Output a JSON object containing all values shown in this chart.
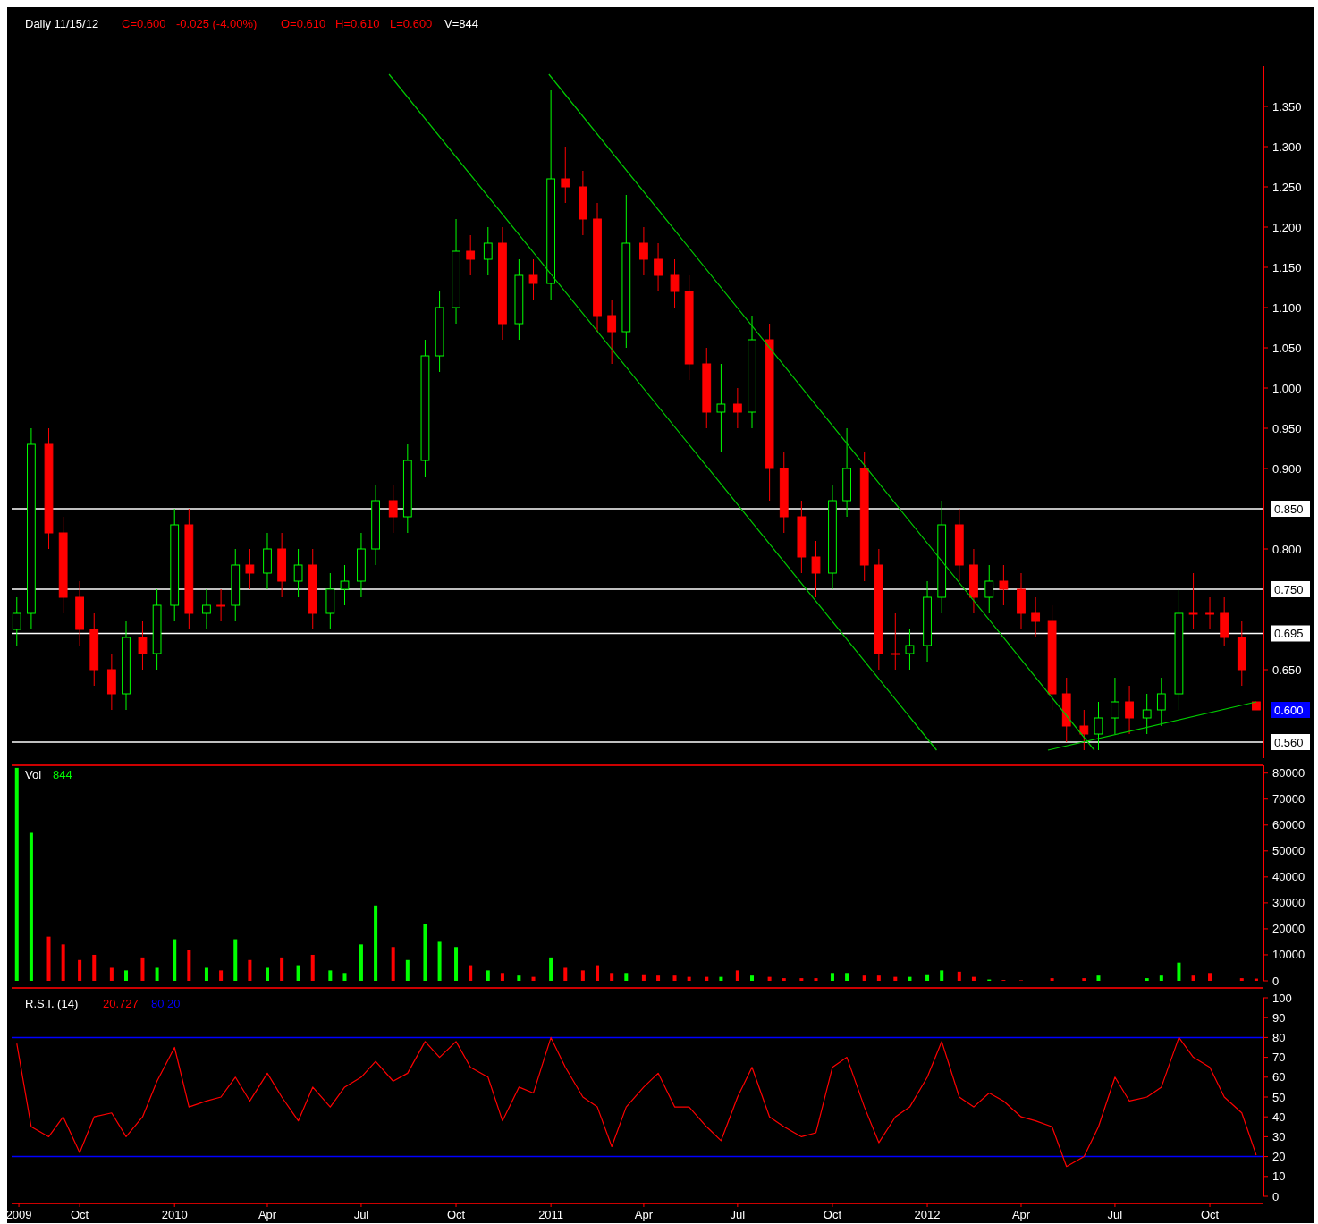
{
  "chart_data": [
    {
      "type": "candlestick",
      "title": "Daily 11/15/12",
      "annotations": [
        "C=0.600",
        "-0.025 (-4.00%)",
        "O=0.610",
        "H=0.610",
        "L=0.600",
        "V=844",
        {
          "text": "0.600",
          "x": "2012-11-15",
          "y": 0.6
        }
      ],
      "x": [
        "2009-08-01",
        "2009-08-15",
        "2009-09-01",
        "2009-09-15",
        "2009-10-01",
        "2009-10-15",
        "2009-11-01",
        "2009-11-15",
        "2009-12-01",
        "2009-12-15",
        "2010-01-01",
        "2010-01-15",
        "2010-02-01",
        "2010-02-15",
        "2010-03-01",
        "2010-03-15",
        "2010-04-01",
        "2010-04-15",
        "2010-05-01",
        "2010-05-15",
        "2010-06-01",
        "2010-06-15",
        "2010-07-01",
        "2010-07-15",
        "2010-08-01",
        "2010-08-15",
        "2010-09-01",
        "2010-09-15",
        "2010-10-01",
        "2010-10-15",
        "2010-11-01",
        "2010-11-15",
        "2010-12-01",
        "2010-12-15",
        "2011-01-01",
        "2011-01-15",
        "2011-02-01",
        "2011-02-15",
        "2011-03-01",
        "2011-03-15",
        "2011-04-01",
        "2011-04-15",
        "2011-05-01",
        "2011-05-15",
        "2011-06-01",
        "2011-06-15",
        "2011-07-01",
        "2011-07-15",
        "2011-08-01",
        "2011-08-15",
        "2011-09-01",
        "2011-09-15",
        "2011-10-01",
        "2011-10-15",
        "2011-11-01",
        "2011-11-15",
        "2011-12-01",
        "2011-12-15",
        "2012-01-01",
        "2012-01-15",
        "2012-02-01",
        "2012-02-15",
        "2012-03-01",
        "2012-03-15",
        "2012-04-01",
        "2012-04-15",
        "2012-05-01",
        "2012-05-15",
        "2012-06-01",
        "2012-06-15",
        "2012-07-01",
        "2012-07-15",
        "2012-08-01",
        "2012-08-15",
        "2012-09-01",
        "2012-09-15",
        "2012-10-01",
        "2012-10-15",
        "2012-11-01",
        "2012-11-15"
      ],
      "ohlc": [
        [
          0.7,
          0.74,
          0.68,
          0.72
        ],
        [
          0.72,
          0.95,
          0.7,
          0.93
        ],
        [
          0.93,
          0.95,
          0.8,
          0.82
        ],
        [
          0.82,
          0.84,
          0.72,
          0.74
        ],
        [
          0.74,
          0.76,
          0.68,
          0.7
        ],
        [
          0.7,
          0.72,
          0.63,
          0.65
        ],
        [
          0.65,
          0.67,
          0.6,
          0.62
        ],
        [
          0.62,
          0.71,
          0.6,
          0.69
        ],
        [
          0.69,
          0.71,
          0.65,
          0.67
        ],
        [
          0.67,
          0.75,
          0.65,
          0.73
        ],
        [
          0.73,
          0.85,
          0.71,
          0.83
        ],
        [
          0.83,
          0.85,
          0.7,
          0.72
        ],
        [
          0.72,
          0.75,
          0.7,
          0.73
        ],
        [
          0.73,
          0.75,
          0.71,
          0.73
        ],
        [
          0.73,
          0.8,
          0.71,
          0.78
        ],
        [
          0.78,
          0.8,
          0.75,
          0.77
        ],
        [
          0.77,
          0.82,
          0.75,
          0.8
        ],
        [
          0.8,
          0.82,
          0.74,
          0.76
        ],
        [
          0.76,
          0.8,
          0.74,
          0.78
        ],
        [
          0.78,
          0.8,
          0.7,
          0.72
        ],
        [
          0.72,
          0.77,
          0.7,
          0.75
        ],
        [
          0.75,
          0.78,
          0.73,
          0.76
        ],
        [
          0.76,
          0.82,
          0.74,
          0.8
        ],
        [
          0.8,
          0.88,
          0.78,
          0.86
        ],
        [
          0.86,
          0.88,
          0.82,
          0.84
        ],
        [
          0.84,
          0.93,
          0.82,
          0.91
        ],
        [
          0.91,
          1.06,
          0.89,
          1.04
        ],
        [
          1.04,
          1.12,
          1.02,
          1.1
        ],
        [
          1.1,
          1.21,
          1.08,
          1.17
        ],
        [
          1.17,
          1.19,
          1.14,
          1.16
        ],
        [
          1.16,
          1.2,
          1.14,
          1.18
        ],
        [
          1.18,
          1.2,
          1.06,
          1.08
        ],
        [
          1.08,
          1.16,
          1.06,
          1.14
        ],
        [
          1.14,
          1.16,
          1.11,
          1.13
        ],
        [
          1.13,
          1.37,
          1.11,
          1.26
        ],
        [
          1.26,
          1.3,
          1.23,
          1.25
        ],
        [
          1.25,
          1.27,
          1.19,
          1.21
        ],
        [
          1.21,
          1.23,
          1.07,
          1.09
        ],
        [
          1.09,
          1.11,
          1.03,
          1.07
        ],
        [
          1.07,
          1.24,
          1.05,
          1.18
        ],
        [
          1.18,
          1.2,
          1.14,
          1.16
        ],
        [
          1.16,
          1.18,
          1.12,
          1.14
        ],
        [
          1.14,
          1.16,
          1.1,
          1.12
        ],
        [
          1.12,
          1.14,
          1.01,
          1.03
        ],
        [
          1.03,
          1.05,
          0.95,
          0.97
        ],
        [
          0.97,
          1.03,
          0.92,
          0.98
        ],
        [
          0.98,
          1.0,
          0.95,
          0.97
        ],
        [
          0.97,
          1.09,
          0.95,
          1.06
        ],
        [
          1.06,
          1.08,
          0.86,
          0.9
        ],
        [
          0.9,
          0.92,
          0.82,
          0.84
        ],
        [
          0.84,
          0.86,
          0.77,
          0.79
        ],
        [
          0.79,
          0.81,
          0.74,
          0.77
        ],
        [
          0.77,
          0.88,
          0.75,
          0.86
        ],
        [
          0.86,
          0.95,
          0.84,
          0.9
        ],
        [
          0.9,
          0.92,
          0.76,
          0.78
        ],
        [
          0.78,
          0.8,
          0.65,
          0.67
        ],
        [
          0.67,
          0.72,
          0.65,
          0.67
        ],
        [
          0.67,
          0.7,
          0.65,
          0.68
        ],
        [
          0.68,
          0.76,
          0.66,
          0.74
        ],
        [
          0.74,
          0.86,
          0.72,
          0.83
        ],
        [
          0.83,
          0.85,
          0.76,
          0.78
        ],
        [
          0.78,
          0.8,
          0.72,
          0.74
        ],
        [
          0.74,
          0.78,
          0.72,
          0.76
        ],
        [
          0.76,
          0.78,
          0.73,
          0.75
        ],
        [
          0.75,
          0.77,
          0.7,
          0.72
        ],
        [
          0.72,
          0.74,
          0.69,
          0.71
        ],
        [
          0.71,
          0.73,
          0.6,
          0.62
        ],
        [
          0.62,
          0.64,
          0.56,
          0.58
        ],
        [
          0.58,
          0.6,
          0.55,
          0.57
        ],
        [
          0.57,
          0.61,
          0.55,
          0.59
        ],
        [
          0.59,
          0.64,
          0.57,
          0.61
        ],
        [
          0.61,
          0.63,
          0.57,
          0.59
        ],
        [
          0.59,
          0.62,
          0.57,
          0.6
        ],
        [
          0.6,
          0.64,
          0.58,
          0.62
        ],
        [
          0.62,
          0.75,
          0.6,
          0.72
        ],
        [
          0.72,
          0.77,
          0.7,
          0.72
        ],
        [
          0.72,
          0.74,
          0.7,
          0.72
        ],
        [
          0.72,
          0.74,
          0.68,
          0.69
        ],
        [
          0.69,
          0.71,
          0.63,
          0.65
        ],
        [
          0.61,
          0.61,
          0.6,
          0.6
        ]
      ],
      "series": [
        {
          "type": "line",
          "color": "#00cc00",
          "x": [
            "2010-07-28",
            "2012-01-10"
          ],
          "values": [
            1.39,
            0.55
          ]
        },
        {
          "type": "line",
          "color": "#00cc00",
          "x": [
            "2010-12-30",
            "2012-06-11"
          ],
          "values": [
            1.39,
            0.55
          ]
        },
        {
          "type": "line",
          "color": "#00cc00",
          "x": [
            "2012-04-27",
            "2012-11-15"
          ],
          "values": [
            0.55,
            0.61
          ]
        }
      ],
      "ref_lines": [
        {
          "axis": "y",
          "value": 0.85,
          "label": "0.850",
          "color": "#ffffff"
        },
        {
          "axis": "y",
          "value": 0.75,
          "label": "0.750",
          "color": "#ffffff"
        },
        {
          "axis": "y",
          "value": 0.695,
          "label": "0.695",
          "color": "#ffffff"
        },
        {
          "axis": "y",
          "value": 0.56,
          "label": "0.560",
          "color": "#ffffff"
        }
      ],
      "xlim": [
        "2009-07-27",
        "2012-11-22"
      ],
      "ylim": [
        0.54,
        1.4
      ],
      "yticks": [
        {
          "value": 0.65,
          "label": "0.650"
        },
        {
          "value": 0.8,
          "label": "0.800"
        },
        {
          "value": 0.9,
          "label": "0.900"
        },
        {
          "value": 0.95,
          "label": "0.950"
        },
        {
          "value": 1.0,
          "label": "1.000"
        },
        {
          "value": 1.05,
          "label": "1.050"
        },
        {
          "value": 1.1,
          "label": "1.100"
        },
        {
          "value": 1.15,
          "label": "1.150"
        },
        {
          "value": 1.2,
          "label": "1.200"
        },
        {
          "value": 1.25,
          "label": "1.250"
        },
        {
          "value": 1.3,
          "label": "1.300"
        },
        {
          "value": 1.35,
          "label": "1.350"
        }
      ],
      "tick_labels": "y"
    },
    {
      "type": "bar",
      "title": "Vol",
      "annotations": [
        "844"
      ],
      "x": [
        "2009-08-01",
        "2009-08-15",
        "2009-09-01",
        "2009-09-15",
        "2009-10-01",
        "2009-10-15",
        "2009-11-01",
        "2009-11-15",
        "2009-12-01",
        "2009-12-15",
        "2010-01-01",
        "2010-01-15",
        "2010-02-01",
        "2010-02-15",
        "2010-03-01",
        "2010-03-15",
        "2010-04-01",
        "2010-04-15",
        "2010-05-01",
        "2010-05-15",
        "2010-06-01",
        "2010-06-15",
        "2010-07-01",
        "2010-07-15",
        "2010-08-01",
        "2010-08-15",
        "2010-09-01",
        "2010-09-15",
        "2010-10-01",
        "2010-10-15",
        "2010-11-01",
        "2010-11-15",
        "2010-12-01",
        "2010-12-15",
        "2011-01-01",
        "2011-01-15",
        "2011-02-01",
        "2011-02-15",
        "2011-03-01",
        "2011-03-15",
        "2011-04-01",
        "2011-04-15",
        "2011-05-01",
        "2011-05-15",
        "2011-06-01",
        "2011-06-15",
        "2011-07-01",
        "2011-07-15",
        "2011-08-01",
        "2011-08-15",
        "2011-09-01",
        "2011-09-15",
        "2011-10-01",
        "2011-10-15",
        "2011-11-01",
        "2011-11-15",
        "2011-12-01",
        "2011-12-15",
        "2012-01-01",
        "2012-01-15",
        "2012-02-01",
        "2012-02-15",
        "2012-03-01",
        "2012-03-15",
        "2012-04-01",
        "2012-04-15",
        "2012-05-01",
        "2012-05-15",
        "2012-06-01",
        "2012-06-15",
        "2012-07-01",
        "2012-07-15",
        "2012-08-01",
        "2012-08-15",
        "2012-09-01",
        "2012-09-15",
        "2012-10-01",
        "2012-10-15",
        "2012-11-01",
        "2012-11-15"
      ],
      "values": [
        82000,
        57000,
        17000,
        14000,
        8000,
        10000,
        5000,
        4000,
        9000,
        5000,
        16000,
        12000,
        5000,
        4000,
        16000,
        8000,
        5000,
        9000,
        6000,
        10000,
        4000,
        3000,
        14000,
        29000,
        13000,
        8000,
        22000,
        15000,
        13000,
        6000,
        4000,
        3000,
        2000,
        1500,
        9000,
        5000,
        4000,
        6000,
        3000,
        3000,
        2500,
        2000,
        2000,
        1500,
        1500,
        1500,
        4000,
        2000,
        1500,
        1000,
        1000,
        1000,
        3000,
        3000,
        2000,
        2000,
        1500,
        1500,
        2500,
        4000,
        3500,
        1500,
        500,
        300,
        200,
        0,
        1000,
        0,
        1000,
        2000,
        0,
        0,
        1000,
        2000,
        7000,
        2000,
        3000,
        0,
        1000,
        844
      ],
      "colors": [
        "#00ff00",
        "#00ff00",
        "#ff0000",
        "#ff0000",
        "#ff0000",
        "#ff0000",
        "#ff0000",
        "#00ff00",
        "#ff0000",
        "#00ff00",
        "#00ff00",
        "#ff0000",
        "#00ff00",
        "#ff0000",
        "#00ff00",
        "#ff0000",
        "#00ff00",
        "#ff0000",
        "#00ff00",
        "#ff0000",
        "#00ff00",
        "#00ff00",
        "#00ff00",
        "#00ff00",
        "#ff0000",
        "#00ff00",
        "#00ff00",
        "#00ff00",
        "#00ff00",
        "#ff0000",
        "#00ff00",
        "#ff0000",
        "#00ff00",
        "#ff0000",
        "#00ff00",
        "#ff0000",
        "#ff0000",
        "#ff0000",
        "#ff0000",
        "#00ff00",
        "#ff0000",
        "#ff0000",
        "#ff0000",
        "#ff0000",
        "#ff0000",
        "#00ff00",
        "#ff0000",
        "#00ff00",
        "#ff0000",
        "#ff0000",
        "#ff0000",
        "#ff0000",
        "#00ff00",
        "#00ff00",
        "#ff0000",
        "#ff0000",
        "#ff0000",
        "#00ff00",
        "#00ff00",
        "#00ff00",
        "#ff0000",
        "#ff0000",
        "#00ff00",
        "#ff0000",
        "#ff0000",
        "#ff0000",
        "#ff0000",
        "#ff0000",
        "#ff0000",
        "#00ff00",
        "#00ff00",
        "#ff0000",
        "#00ff00",
        "#00ff00",
        "#00ff00",
        "#ff0000",
        "#ff0000",
        "#ff0000",
        "#ff0000",
        "#ff0000"
      ],
      "xlim": [
        "2009-07-27",
        "2012-11-22"
      ],
      "ylim": [
        0,
        83000
      ],
      "yticks": [
        0,
        10000,
        20000,
        30000,
        40000,
        50000,
        60000,
        70000,
        80000
      ],
      "tick_labels": "y"
    },
    {
      "type": "line",
      "title": "R.S.I. (14)",
      "annotations": [
        "20.727",
        "80 20"
      ],
      "color": "#ff0000",
      "x": [
        "2009-08-01",
        "2009-08-15",
        "2009-09-01",
        "2009-09-15",
        "2009-10-01",
        "2009-10-15",
        "2009-11-01",
        "2009-11-15",
        "2009-12-01",
        "2009-12-15",
        "2010-01-01",
        "2010-01-15",
        "2010-02-01",
        "2010-02-15",
        "2010-03-01",
        "2010-03-15",
        "2010-04-01",
        "2010-04-15",
        "2010-05-01",
        "2010-05-15",
        "2010-06-01",
        "2010-06-15",
        "2010-07-01",
        "2010-07-15",
        "2010-08-01",
        "2010-08-15",
        "2010-09-01",
        "2010-09-15",
        "2010-10-01",
        "2010-10-15",
        "2010-11-01",
        "2010-11-15",
        "2010-12-01",
        "2010-12-15",
        "2011-01-01",
        "2011-01-15",
        "2011-02-01",
        "2011-02-15",
        "2011-03-01",
        "2011-03-15",
        "2011-04-01",
        "2011-04-15",
        "2011-05-01",
        "2011-05-15",
        "2011-06-01",
        "2011-06-15",
        "2011-07-01",
        "2011-07-15",
        "2011-08-01",
        "2011-08-15",
        "2011-09-01",
        "2011-09-15",
        "2011-10-01",
        "2011-10-15",
        "2011-11-01",
        "2011-11-15",
        "2011-12-01",
        "2011-12-15",
        "2012-01-01",
        "2012-01-15",
        "2012-02-01",
        "2012-02-15",
        "2012-03-01",
        "2012-03-15",
        "2012-04-01",
        "2012-04-15",
        "2012-05-01",
        "2012-05-15",
        "2012-06-01",
        "2012-06-15",
        "2012-07-01",
        "2012-07-15",
        "2012-08-01",
        "2012-08-15",
        "2012-09-01",
        "2012-09-15",
        "2012-10-01",
        "2012-10-15",
        "2012-11-01",
        "2012-11-15"
      ],
      "values": [
        77,
        35,
        30,
        40,
        22,
        40,
        42,
        30,
        40,
        58,
        75,
        45,
        48,
        50,
        60,
        48,
        62,
        50,
        38,
        55,
        45,
        55,
        60,
        68,
        58,
        62,
        78,
        70,
        78,
        65,
        60,
        38,
        55,
        52,
        80,
        65,
        50,
        45,
        25,
        45,
        55,
        62,
        45,
        45,
        35,
        28,
        50,
        65,
        40,
        35,
        30,
        32,
        65,
        70,
        45,
        27,
        40,
        45,
        60,
        78,
        50,
        45,
        52,
        48,
        40,
        38,
        35,
        15,
        20,
        35,
        60,
        48,
        50,
        55,
        80,
        70,
        65,
        50,
        42,
        20.727
      ],
      "ref_lines": [
        {
          "axis": "y",
          "value": 80,
          "color": "#0000ff"
        },
        {
          "axis": "y",
          "value": 20,
          "color": "#0000ff"
        }
      ],
      "xlim": [
        "2009-07-27",
        "2012-11-22"
      ],
      "ylim": [
        0,
        100
      ],
      "yticks": [
        0,
        10,
        20,
        30,
        40,
        50,
        60,
        70,
        80,
        90,
        100
      ],
      "xticks": [
        {
          "value": "2009-08-03",
          "label": "2009"
        },
        {
          "value": "2009-10-01",
          "label": "Oct"
        },
        {
          "value": "2010-01-01",
          "label": "2010"
        },
        {
          "value": "2010-04-01",
          "label": "Apr"
        },
        {
          "value": "2010-07-01",
          "label": "Jul"
        },
        {
          "value": "2010-10-01",
          "label": "Oct"
        },
        {
          "value": "2011-01-01",
          "label": "2011"
        },
        {
          "value": "2011-04-01",
          "label": "Apr"
        },
        {
          "value": "2011-07-01",
          "label": "Jul"
        },
        {
          "value": "2011-10-01",
          "label": "Oct"
        },
        {
          "value": "2012-01-01",
          "label": "2012"
        },
        {
          "value": "2012-04-01",
          "label": "Apr"
        },
        {
          "value": "2012-07-01",
          "label": "Jul"
        },
        {
          "value": "2012-10-01",
          "label": "Oct"
        }
      ]
    }
  ]
}
